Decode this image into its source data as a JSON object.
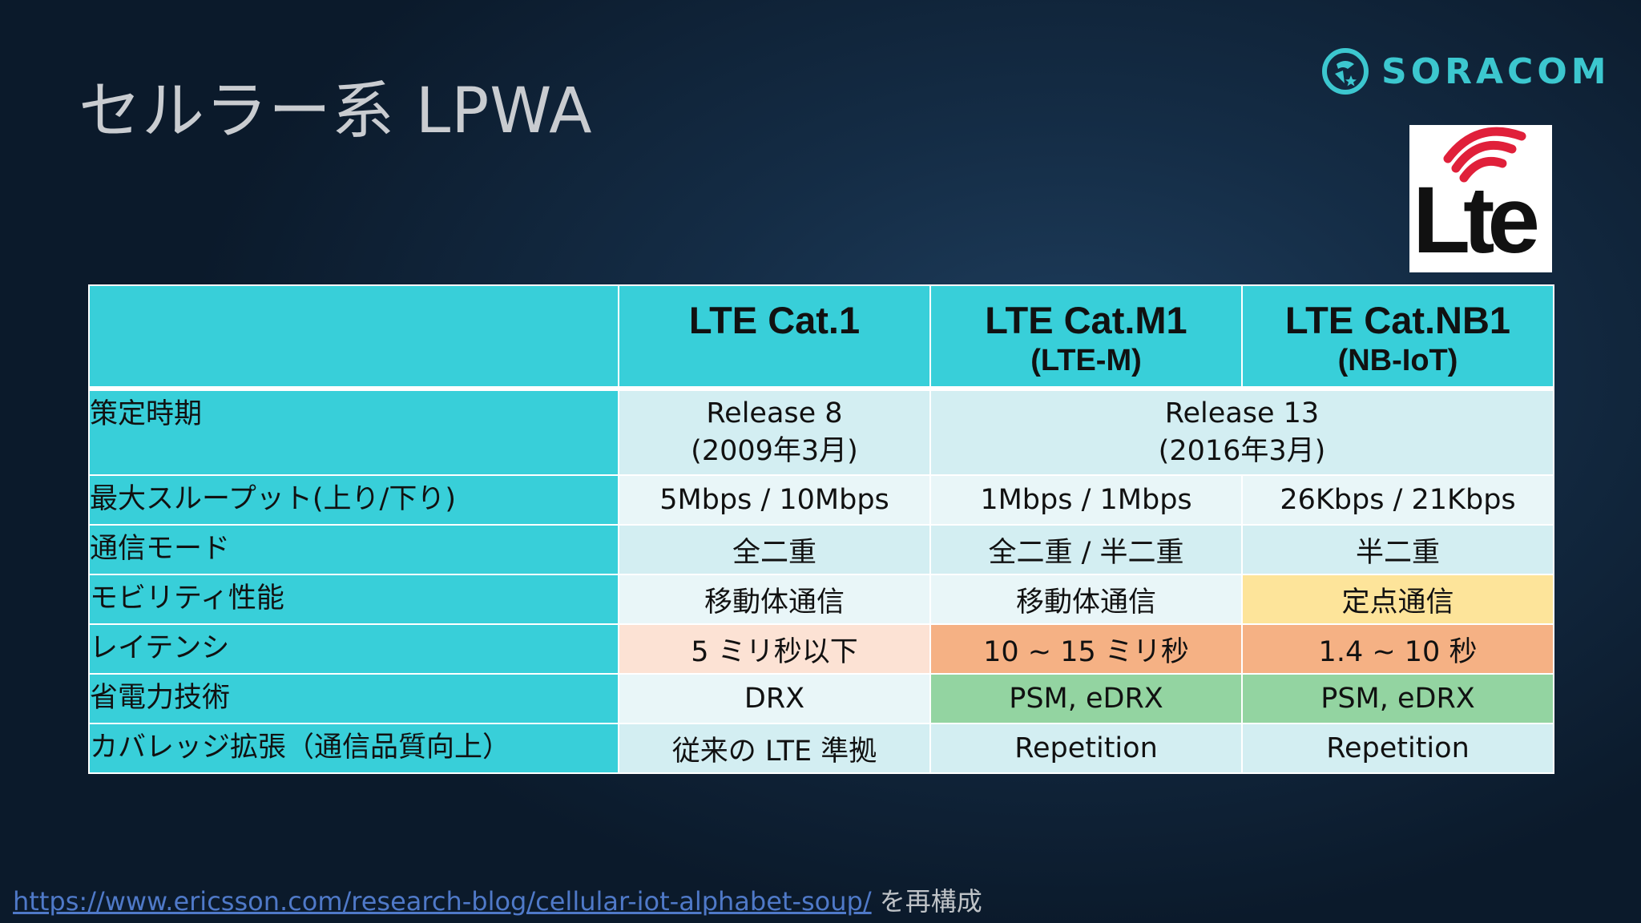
{
  "slide": {
    "title": "セルラー系 LPWA"
  },
  "brand": {
    "logo_text": "SORACOM",
    "logo_color": "#3cc7cf",
    "lte_logo_text": "Lte",
    "lte_logo_wave_color": "#e0203a"
  },
  "table": {
    "header": {
      "col1": {
        "main": "LTE Cat.1",
        "sub": ""
      },
      "col2": {
        "main": "LTE Cat.M1",
        "sub": "(LTE-M)"
      },
      "col3": {
        "main": "LTE Cat.NB1",
        "sub": "(NB-IoT)"
      }
    },
    "rows": [
      {
        "label": "策定時期",
        "c1": [
          "Release 8",
          "(2009年3月)"
        ],
        "c23": [
          "Release 13",
          "(2016年3月)"
        ]
      },
      {
        "label": "最大スループット(上り/下り)",
        "c1": "5Mbps / 10Mbps",
        "c2": "1Mbps / 1Mbps",
        "c3": "26Kbps / 21Kbps"
      },
      {
        "label": "通信モード",
        "c1": "全二重",
        "c2": "全二重 / 半二重",
        "c3": "半二重"
      },
      {
        "label": "モビリティ性能",
        "c1": "移動体通信",
        "c2": "移動体通信",
        "c3": "定点通信"
      },
      {
        "label": "レイテンシ",
        "c1": "5 ミリ秒以下",
        "c2": "10 ~ 15 ミリ秒",
        "c3": "1.4 ~ 10 秒"
      },
      {
        "label": "省電力技術",
        "c1": "DRX",
        "c2": "PSM, eDRX",
        "c3": "PSM, eDRX"
      },
      {
        "label": "カバレッジ拡張（通信品質向上）",
        "c1": "従来の LTE 準拠",
        "c2": "Repetition",
        "c3": "Repetition"
      }
    ],
    "colors": {
      "header": "#38cfd9",
      "label_column": "#38cfd9",
      "light_cell_a": "#d3eef2",
      "light_cell_b": "#e9f6f8",
      "yellow": "#fde49a",
      "peach": "#fce2d4",
      "orange": "#f5b184",
      "green": "#93d4a1"
    }
  },
  "footer": {
    "link_text": "https://www.ericsson.com/research-blog/cellular-iot-alphabet-soup/",
    "suffix": " を再構成"
  }
}
